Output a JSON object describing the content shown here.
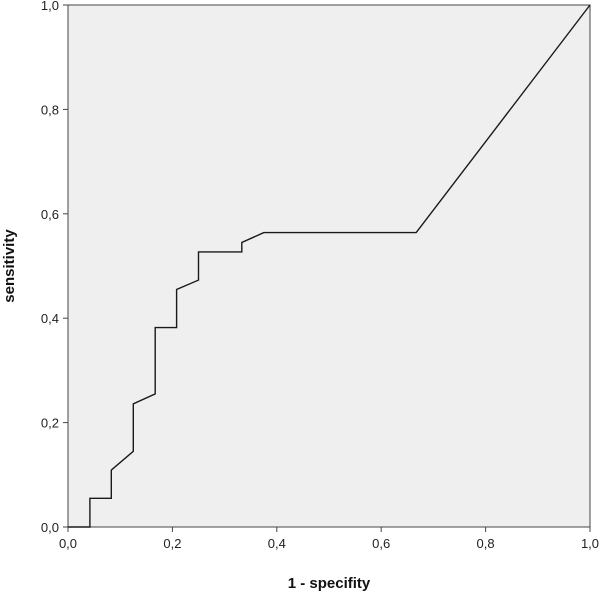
{
  "chart_data": {
    "type": "line",
    "title": "",
    "xlabel": "1 - specifity",
    "ylabel": "sensitivity",
    "xlim": [
      0,
      1
    ],
    "ylim": [
      0,
      1
    ],
    "x_ticks": [
      0,
      0.2,
      0.4,
      0.6,
      0.8,
      1.0
    ],
    "y_ticks": [
      0,
      0.2,
      0.4,
      0.6,
      0.8,
      1.0
    ],
    "x_tick_labels": [
      "0,0",
      "0,2",
      "0,4",
      "0,6",
      "0,8",
      "1,0"
    ],
    "y_tick_labels": [
      "0,0",
      "0,2",
      "0,4",
      "0,6",
      "0,8",
      "1,0"
    ],
    "grid": false,
    "plot_background": "#efefef",
    "line_color": "#1a1a1a",
    "series": [
      {
        "x": [
          0.0,
          0.042,
          0.042,
          0.083,
          0.083,
          0.125,
          0.125,
          0.167,
          0.167,
          0.208,
          0.208,
          0.25,
          0.25,
          0.333,
          0.333,
          0.375,
          0.667,
          1.0
        ],
        "y": [
          0.0,
          0.0,
          0.055,
          0.055,
          0.109,
          0.145,
          0.236,
          0.255,
          0.382,
          0.382,
          0.455,
          0.473,
          0.527,
          0.527,
          0.545,
          0.564,
          0.564,
          1.0
        ]
      }
    ]
  }
}
